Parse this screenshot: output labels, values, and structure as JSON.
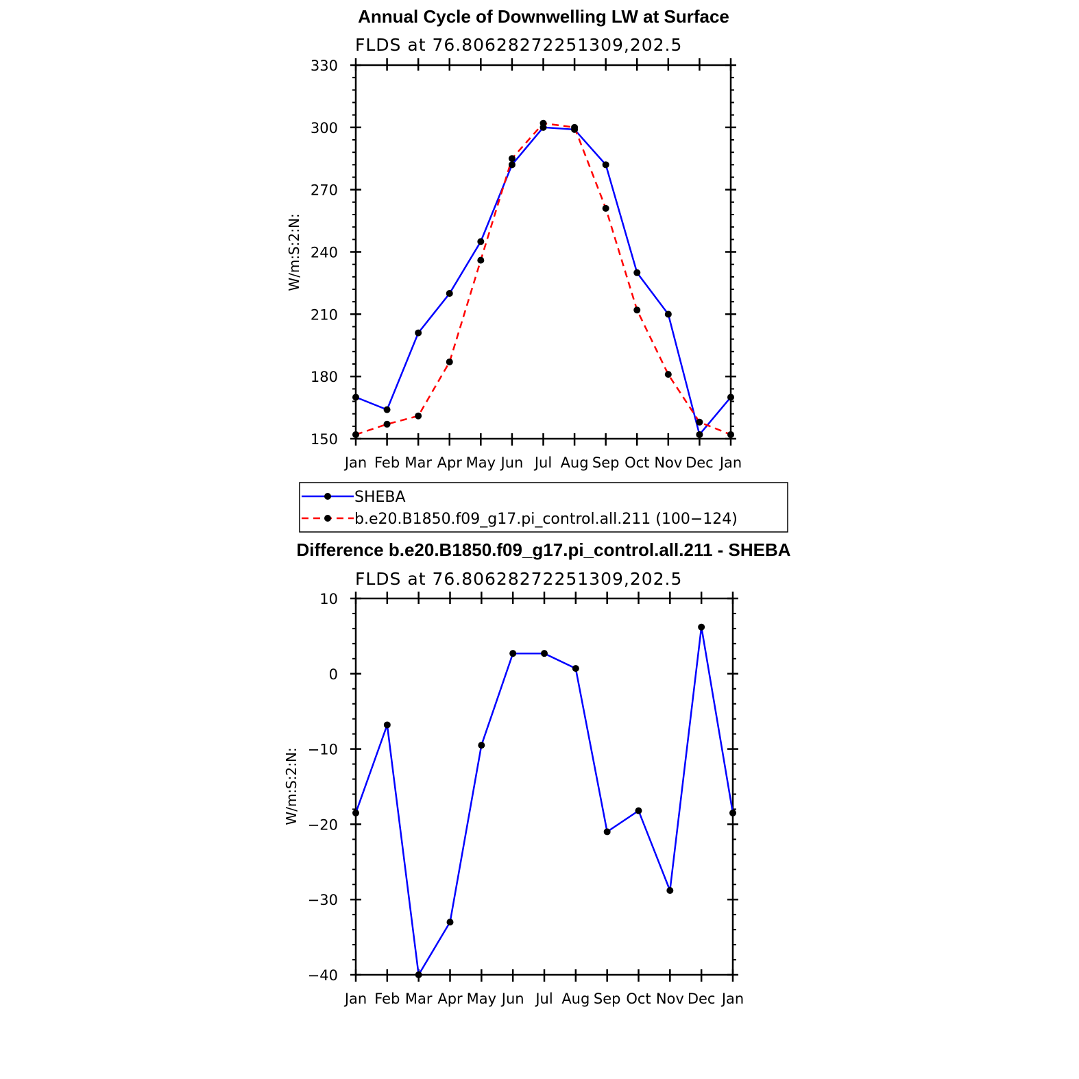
{
  "chart_data": [
    {
      "type": "line",
      "title": "Annual Cycle of Downwelling LW at Surface",
      "subtitle": "FLDS at 76.80628272251309,202.5",
      "ylabel": "W/m:S:2:N:",
      "categories": [
        "Jan",
        "Feb",
        "Mar",
        "Apr",
        "May",
        "Jun",
        "Jul",
        "Aug",
        "Sep",
        "Oct",
        "Nov",
        "Dec",
        "Jan"
      ],
      "ylim": [
        150,
        330
      ],
      "yticks": [
        150,
        180,
        210,
        240,
        270,
        300,
        330
      ],
      "series": [
        {
          "name": "SHEBA",
          "color": "#0000ff",
          "dash": "solid",
          "values": [
            170,
            164,
            201,
            220,
            245,
            282,
            300,
            299,
            282,
            230,
            210,
            152,
            170
          ]
        },
        {
          "name": "b.e20.B1850.f09_g17.pi_control.all.211 (100−124)",
          "color": "#ff0000",
          "dash": "dashed",
          "values": [
            152,
            157,
            161,
            187,
            236,
            285,
            302,
            300,
            261,
            212,
            181,
            158,
            152
          ]
        }
      ]
    },
    {
      "type": "line",
      "title": "Difference b.e20.B1850.f09_g17.pi_control.all.211 - SHEBA",
      "subtitle": "FLDS at 76.80628272251309,202.5",
      "ylabel": "W/m:S:2:N:",
      "categories": [
        "Jan",
        "Feb",
        "Mar",
        "Apr",
        "May",
        "Jun",
        "Jul",
        "Aug",
        "Sep",
        "Oct",
        "Nov",
        "Dec",
        "Jan"
      ],
      "ylim": [
        -40,
        10
      ],
      "yticks": [
        -40,
        -30,
        -20,
        -10,
        0,
        10
      ],
      "ytick_labels": [
        "−40",
        "−30",
        "−20",
        "−10",
        "0",
        "10"
      ],
      "series": [
        {
          "color": "#0000ff",
          "dash": "solid",
          "values": [
            -18.5,
            -6.8,
            -40,
            -33,
            -9.5,
            2.7,
            2.7,
            0.7,
            -21,
            -18.2,
            -28.8,
            6.2,
            -18.5
          ]
        }
      ]
    }
  ]
}
